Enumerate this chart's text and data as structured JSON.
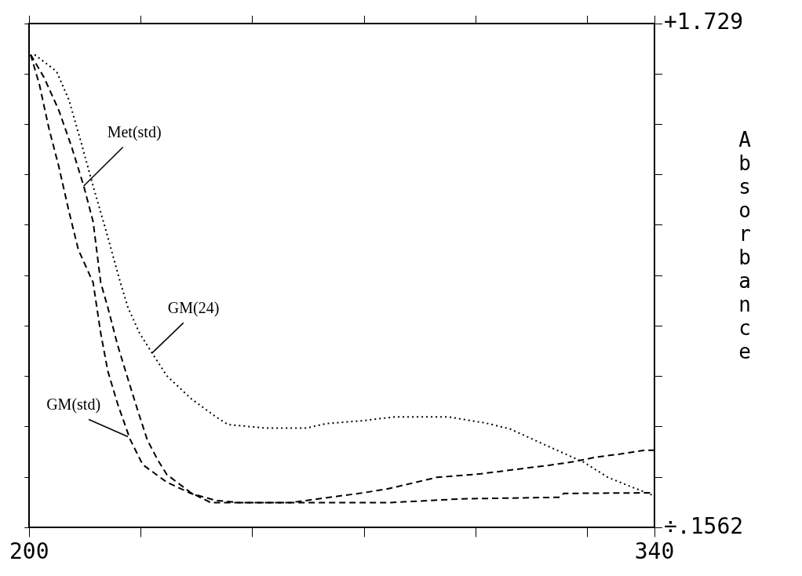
{
  "chart_data": {
    "type": "line",
    "ylabel": "Absorbance",
    "xlim": [
      200,
      340
    ],
    "xticks": [
      {
        "value": 200,
        "label": "200"
      },
      {
        "value": 225,
        "label": null
      },
      {
        "value": 250,
        "label": null
      },
      {
        "value": 275,
        "label": null
      },
      {
        "value": 300,
        "label": null
      },
      {
        "value": 325,
        "label": null
      },
      {
        "value": 340,
        "label": "340"
      }
    ],
    "ylim": [
      0.1562,
      1.729
    ],
    "yticks": [
      {
        "value": 0.1562,
        "label": "÷.1562"
      },
      {
        "value": 0.3135,
        "label": null
      },
      {
        "value": 0.4708,
        "label": null
      },
      {
        "value": 0.6281,
        "label": null
      },
      {
        "value": 0.7854,
        "label": null
      },
      {
        "value": 0.9426,
        "label": null
      },
      {
        "value": 1.0999,
        "label": null
      },
      {
        "value": 1.2572,
        "label": null
      },
      {
        "value": 1.4145,
        "label": null
      },
      {
        "value": 1.5717,
        "label": null
      },
      {
        "value": 1.729,
        "label": "+1.729"
      }
    ],
    "grid": false,
    "legend": false,
    "marker": "none",
    "series": [
      {
        "color": "#000000",
        "line_style": "dotted",
        "x": [
          201.2,
          206.1,
          208.9,
          211.5,
          214.3,
          217.1,
          220.4,
          222.1,
          224.7,
          227.5,
          230.8,
          236.2,
          241.8,
          244.5,
          252.7,
          262.1,
          266.5,
          274.8,
          281.9,
          293.9,
          296.7,
          302.1,
          307.7,
          313.2,
          318.6,
          324.2,
          329.6,
          335.1,
          339.5
        ],
        "values": [
          1.632,
          1.58,
          1.49,
          1.364,
          1.222,
          1.087,
          0.921,
          0.843,
          0.763,
          0.701,
          0.63,
          0.559,
          0.502,
          0.478,
          0.467,
          0.467,
          0.481,
          0.49,
          0.502,
          0.502,
          0.495,
          0.483,
          0.464,
          0.429,
          0.395,
          0.36,
          0.313,
          0.282,
          0.258
        ]
      },
      {
        "color": "#000000",
        "line_style": "dashed",
        "x": [
          200.3,
          203.3,
          206.6,
          209.4,
          212.2,
          214.3,
          216.0,
          217.6,
          219.8,
          222.1,
          224.2,
          226.4,
          228.7,
          230.8,
          236.2,
          240.7,
          258.3,
          274.8,
          280.2,
          291.2,
          301.1,
          307.7,
          316.0,
          321.9,
          326.8,
          332.4,
          337.9,
          340
        ],
        "values": [
          1.632,
          1.561,
          1.459,
          1.348,
          1.222,
          1.111,
          0.921,
          0.843,
          0.725,
          0.62,
          0.526,
          0.431,
          0.369,
          0.322,
          0.265,
          0.234,
          0.234,
          0.265,
          0.277,
          0.313,
          0.324,
          0.336,
          0.35,
          0.362,
          0.376,
          0.386,
          0.398,
          0.398
        ]
      },
      {
        "color": "#000000",
        "line_style": "dashed",
        "x": [
          200.3,
          202.3,
          204.4,
          206.6,
          208.9,
          211.0,
          214.3,
          216.0,
          217.6,
          219.8,
          222.6,
          225.4,
          230.8,
          236.2,
          241.8,
          247.3,
          280.2,
          296.7,
          318.6,
          319.7,
          339.5
        ],
        "values": [
          1.632,
          1.537,
          1.402,
          1.284,
          1.142,
          1.023,
          0.921,
          0.763,
          0.644,
          0.542,
          0.431,
          0.353,
          0.298,
          0.263,
          0.241,
          0.234,
          0.234,
          0.246,
          0.251,
          0.263,
          0.265
        ]
      }
    ],
    "annotations": [
      {
        "text": "Met(std)",
        "x": 212.2,
        "y": 1.222
      },
      {
        "text": "GM(24)",
        "x": 227.5,
        "y": 0.701
      },
      {
        "text": "GM(std)",
        "x": 222.1,
        "y": 0.44
      }
    ]
  }
}
